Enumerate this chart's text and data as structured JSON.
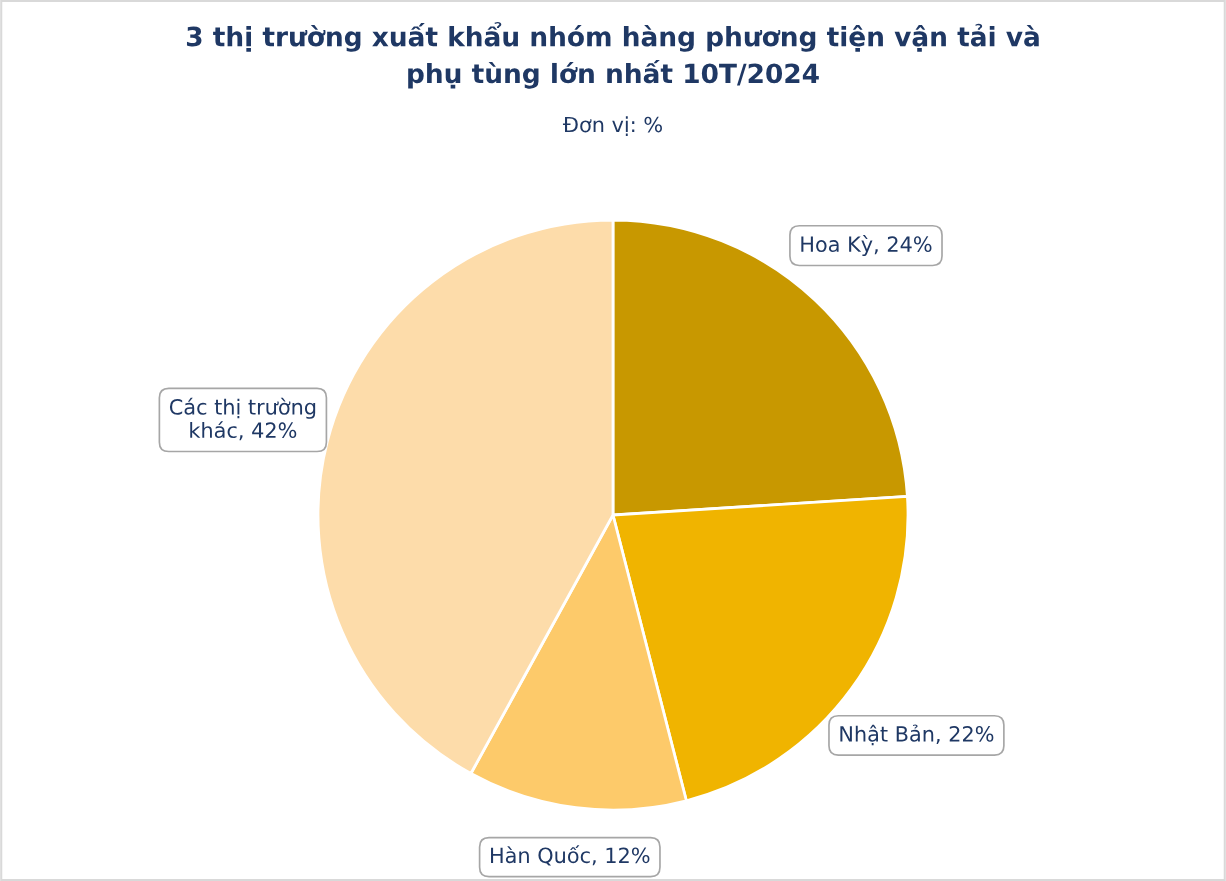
{
  "chart_data": {
    "type": "pie",
    "title": "3 thị trường xuất khẩu nhóm hàng phương tiện vận tải và\nphụ tùng lớn nhất 10T/2024",
    "subtitle": "Đơn vị: %",
    "categories": [
      "Hoa Kỳ",
      "Nhật Bản",
      "Hàn Quốc",
      "Các thị trường khác"
    ],
    "values": [
      24,
      22,
      12,
      42
    ],
    "colors": [
      "#c89800",
      "#f0b400",
      "#fdca6a",
      "#fddcaa"
    ],
    "value_labels": [
      "24%",
      "22%",
      "12%",
      "42%"
    ],
    "legend": false
  }
}
